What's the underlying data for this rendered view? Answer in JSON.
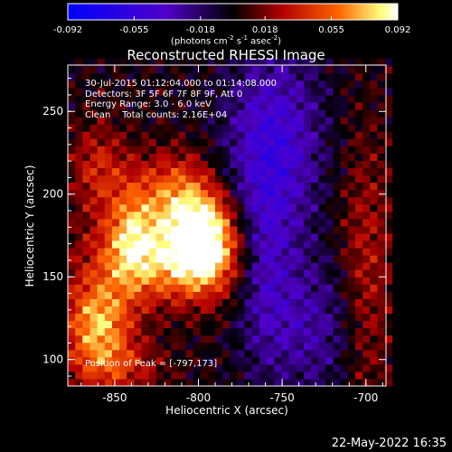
{
  "chart_data": {
    "type": "heatmap",
    "title": "Reconstructed RHESSI Image",
    "xlabel": "Heliocentric X (arcsec)",
    "ylabel": "Heliocentric Y (arcsec)",
    "xlim": [
      -878,
      -688
    ],
    "ylim": [
      84,
      278
    ],
    "xticks": [
      "-850",
      "-800",
      "-750",
      "-700"
    ],
    "xtick_values": [
      -850,
      -800,
      -750,
      -700
    ],
    "yticks": [
      "100",
      "150",
      "200",
      "250"
    ],
    "ytick_values": [
      100,
      150,
      200,
      250
    ],
    "colorbar": {
      "ticks": [
        "-0.092",
        "-0.055",
        "-0.018",
        "0.018",
        "0.055",
        "0.092"
      ],
      "tick_values": [
        -0.092,
        -0.055,
        -0.018,
        0.018,
        0.055,
        0.092
      ],
      "range": [
        -0.092,
        0.092
      ],
      "units_prefix": "(photons cm",
      "units_exp1": "-2",
      "units_mid": " s",
      "units_exp2": "-1",
      "units_mid2": " asec",
      "units_exp3": "-2",
      "units_suffix": ")"
    },
    "sources": [
      {
        "x": -797,
        "y": 173,
        "peak": 0.092
      },
      {
        "x": -860,
        "y": 122,
        "peak": 0.07
      },
      {
        "x": -815,
        "y": 205,
        "peak": 0.045
      },
      {
        "x": -840,
        "y": 175,
        "peak": 0.04
      },
      {
        "x": -700,
        "y": 150,
        "peak": 0.035
      }
    ],
    "grid": false
  },
  "info": {
    "line1": "30-Jul-2015 01:12:04.000 to 01:14:08.000",
    "line2": "Detectors: 3F 5F 6F 7F 8F 9F, Att 0",
    "line3": "Energy Range: 3.0 - 6.0 keV",
    "line4": "Clean    Total counts: 2.16E+04"
  },
  "peak_label": "Position of Peak = [-797,173]",
  "timestamp": "22-May-2022 16:35"
}
